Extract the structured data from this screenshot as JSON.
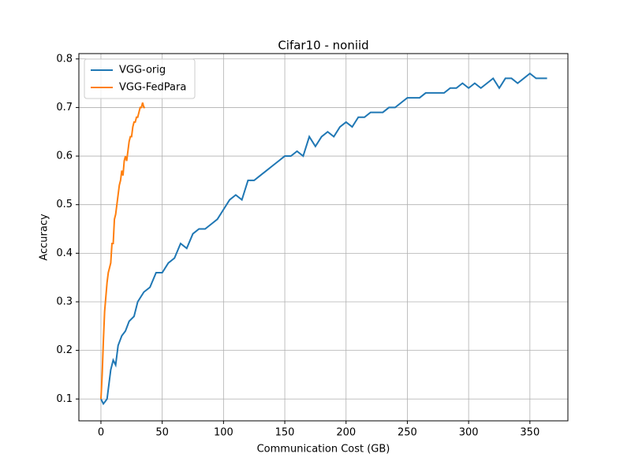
{
  "chart_data": {
    "type": "line",
    "title": "Cifar10 - noniid",
    "xlabel": "Communication Cost (GB)",
    "ylabel": "Accuracy",
    "xlim": [
      -18,
      381
    ],
    "ylim": [
      0.055,
      0.811
    ],
    "xticks": [
      0,
      50,
      100,
      150,
      200,
      250,
      300,
      350
    ],
    "yticks": [
      0.1,
      0.2,
      0.3,
      0.4,
      0.5,
      0.6,
      0.7,
      0.8
    ],
    "grid": true,
    "legend": "upper-left",
    "series": [
      {
        "name": "VGG-orig",
        "color": "#1f77b4",
        "x": [
          0,
          2,
          5,
          8,
          10,
          12,
          14,
          17,
          20,
          23,
          27,
          30,
          35,
          40,
          45,
          50,
          55,
          60,
          65,
          70,
          75,
          80,
          85,
          90,
          95,
          100,
          105,
          110,
          115,
          120,
          125,
          130,
          135,
          140,
          145,
          150,
          155,
          160,
          165,
          170,
          175,
          180,
          185,
          190,
          195,
          200,
          205,
          210,
          215,
          220,
          225,
          230,
          235,
          240,
          245,
          250,
          255,
          260,
          265,
          270,
          275,
          280,
          285,
          290,
          295,
          300,
          305,
          310,
          315,
          320,
          325,
          330,
          335,
          340,
          345,
          350,
          355,
          360,
          364
        ],
        "values": [
          0.1,
          0.09,
          0.1,
          0.16,
          0.18,
          0.17,
          0.21,
          0.23,
          0.24,
          0.26,
          0.27,
          0.3,
          0.32,
          0.33,
          0.36,
          0.36,
          0.38,
          0.39,
          0.42,
          0.41,
          0.44,
          0.45,
          0.45,
          0.46,
          0.47,
          0.49,
          0.51,
          0.52,
          0.51,
          0.55,
          0.55,
          0.56,
          0.57,
          0.58,
          0.59,
          0.6,
          0.6,
          0.61,
          0.6,
          0.64,
          0.62,
          0.64,
          0.65,
          0.64,
          0.66,
          0.67,
          0.66,
          0.68,
          0.68,
          0.69,
          0.69,
          0.69,
          0.7,
          0.7,
          0.71,
          0.72,
          0.72,
          0.72,
          0.73,
          0.73,
          0.73,
          0.73,
          0.74,
          0.74,
          0.75,
          0.74,
          0.75,
          0.74,
          0.75,
          0.76,
          0.74,
          0.76,
          0.76,
          0.75,
          0.76,
          0.77,
          0.76,
          0.76,
          0.76
        ]
      },
      {
        "name": "VGG-FedPara",
        "color": "#ff7f0e",
        "x": [
          0,
          1,
          2,
          3,
          4,
          5,
          6,
          7,
          8,
          9,
          10,
          11,
          12,
          13,
          14,
          15,
          16,
          17,
          18,
          19,
          20,
          21,
          22,
          23,
          24,
          25,
          26,
          27,
          28,
          29,
          30,
          31,
          32,
          33,
          34,
          35,
          36
        ],
        "values": [
          0.1,
          0.15,
          0.22,
          0.28,
          0.31,
          0.34,
          0.36,
          0.37,
          0.38,
          0.42,
          0.42,
          0.47,
          0.48,
          0.5,
          0.52,
          0.54,
          0.55,
          0.57,
          0.56,
          0.59,
          0.6,
          0.59,
          0.61,
          0.63,
          0.64,
          0.64,
          0.66,
          0.67,
          0.67,
          0.68,
          0.68,
          0.69,
          0.7,
          0.7,
          0.71,
          0.7,
          0.7
        ]
      }
    ]
  }
}
